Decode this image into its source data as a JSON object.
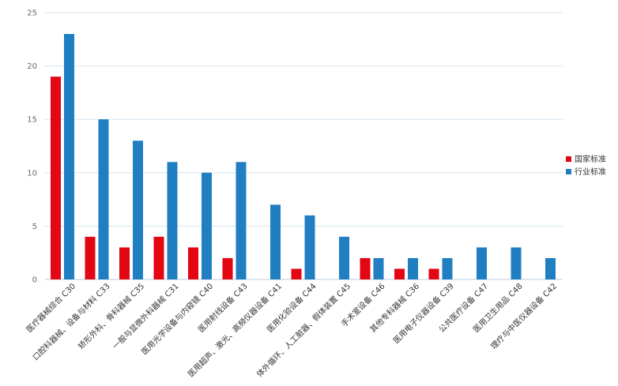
{
  "chart_data": {
    "type": "bar",
    "title": "",
    "xlabel": "",
    "ylabel": "",
    "ylim": [
      0,
      25
    ],
    "yticks": [
      0,
      5,
      10,
      15,
      20,
      25
    ],
    "grid": true,
    "legend_position": "right",
    "categories": [
      "医疗器械综合 C30",
      "口腔科器械、设备与材料 C33",
      "矫形外科、骨科器械 C35",
      "一般与显微外科器械 C31",
      "医用光学设备与内窥镜 C40",
      "医用射线设备 C43",
      "医用超声、激光、高频仪器设备 C41",
      "医用化验设备 C44",
      "体外循环、人工脏器、假体装置 C45",
      "手术室设备 C46",
      "其他专科器械 C36",
      "医用电子仪器设备 C39",
      "公共医疗设备 C47",
      "医用卫生用品 C48",
      "理疗与中医仪器设备 C42"
    ],
    "series": [
      {
        "name": "国家标准",
        "color": "#e30613",
        "values": [
          19,
          4,
          3,
          4,
          3,
          2,
          0,
          1,
          0,
          2,
          1,
          1,
          0,
          0,
          0
        ]
      },
      {
        "name": "行业标准",
        "color": "#1f7fc1",
        "values": [
          23,
          15,
          13,
          11,
          10,
          11,
          7,
          6,
          4,
          2,
          2,
          2,
          3,
          3,
          2
        ]
      }
    ]
  }
}
